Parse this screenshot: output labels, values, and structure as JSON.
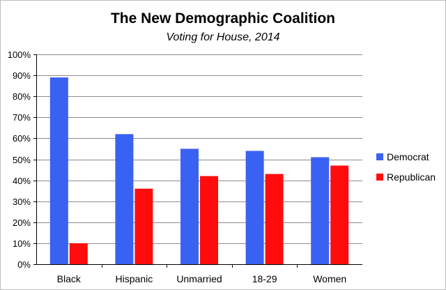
{
  "colors": {
    "democrat": "#3a62f2",
    "republican": "#ff0d0d",
    "grid": "#8c8c8c",
    "axis": "#000000"
  },
  "chart_data": {
    "type": "bar",
    "title": "The New Demographic Coalition",
    "subtitle": "Voting for House, 2014",
    "xlabel": "",
    "ylabel": "",
    "categories": [
      "Black",
      "Hispanic",
      "Unmarried",
      "18-29",
      "Women"
    ],
    "series": [
      {
        "name": "Democrat",
        "color": "#3a62f2",
        "values": [
          89,
          62,
          55,
          54,
          51
        ]
      },
      {
        "name": "Republican",
        "color": "#ff0d0d",
        "values": [
          10,
          36,
          42,
          43,
          47
        ]
      }
    ],
    "ylim": [
      0,
      100
    ],
    "yticks": [
      "0%",
      "10%",
      "20%",
      "30%",
      "40%",
      "50%",
      "60%",
      "70%",
      "80%",
      "90%",
      "100%"
    ],
    "grid": true,
    "legend_position": "right"
  }
}
